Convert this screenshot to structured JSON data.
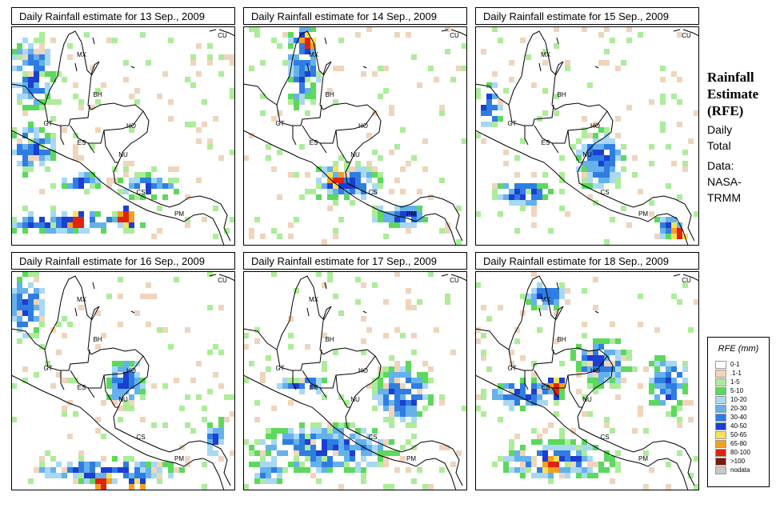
{
  "panels": [
    {
      "title": "Daily Rainfall estimate for  13 Sep., 2009",
      "rain": [
        [
          0.08,
          0.2,
          0.2,
          0.4
        ],
        [
          0.08,
          0.55,
          0.25,
          0.25
        ],
        [
          0.2,
          0.88,
          0.8,
          0.12
        ],
        [
          0.6,
          0.72,
          0.3,
          0.12
        ],
        [
          0.3,
          0.7,
          0.2,
          0.1
        ]
      ],
      "hot": [
        [
          0.28,
          0.88
        ],
        [
          0.5,
          0.86
        ]
      ]
    },
    {
      "title": "Daily Rainfall estimate for  14 Sep., 2009",
      "rain": [
        [
          0.25,
          0.15,
          0.15,
          0.5
        ],
        [
          0.45,
          0.7,
          0.35,
          0.2
        ],
        [
          0.3,
          0.2,
          0.1,
          0.12
        ],
        [
          0.7,
          0.85,
          0.3,
          0.12
        ]
      ],
      "hot": [
        [
          0.27,
          0.06
        ],
        [
          0.4,
          0.68
        ]
      ]
    },
    {
      "title": "Daily Rainfall estimate for  15 Sep., 2009",
      "rain": [
        [
          0.05,
          0.35,
          0.15,
          0.25
        ],
        [
          0.55,
          0.6,
          0.25,
          0.3
        ],
        [
          0.85,
          0.9,
          0.15,
          0.12
        ],
        [
          0.2,
          0.75,
          0.3,
          0.15
        ]
      ],
      "hot": [
        [
          0.9,
          0.92
        ]
      ]
    },
    {
      "title": "Daily Rainfall estimate for  16 Sep., 2009",
      "rain": [
        [
          0.05,
          0.15,
          0.2,
          0.35
        ],
        [
          0.4,
          0.9,
          0.75,
          0.12
        ],
        [
          0.5,
          0.5,
          0.2,
          0.25
        ],
        [
          0.9,
          0.75,
          0.1,
          0.2
        ]
      ],
      "hot": [
        [
          0.4,
          0.95
        ],
        [
          0.55,
          0.98
        ]
      ]
    },
    {
      "title": "Daily Rainfall estimate for  17 Sep., 2009",
      "rain": [
        [
          0.35,
          0.8,
          0.7,
          0.25
        ],
        [
          0.25,
          0.5,
          0.25,
          0.12
        ],
        [
          0.7,
          0.55,
          0.3,
          0.3
        ],
        [
          0.1,
          0.9,
          0.2,
          0.12
        ]
      ],
      "hot": []
    },
    {
      "title": "Daily Rainfall estimate for  18 Sep., 2009",
      "rain": [
        [
          0.2,
          0.55,
          0.4,
          0.15
        ],
        [
          0.35,
          0.85,
          0.6,
          0.2
        ],
        [
          0.55,
          0.4,
          0.3,
          0.25
        ],
        [
          0.85,
          0.5,
          0.2,
          0.3
        ],
        [
          0.3,
          0.1,
          0.2,
          0.15
        ]
      ],
      "hot": [
        [
          0.33,
          0.87
        ],
        [
          0.35,
          0.52
        ]
      ]
    }
  ],
  "map_labels": [
    "MX",
    "BH",
    "GT",
    "HO",
    "ES",
    "NU",
    "CS",
    "PM",
    "CU"
  ],
  "side": {
    "title_line1": "Rainfall",
    "title_line2": "Estimate",
    "title_line3": "(RFE)",
    "daily_line1": "Daily",
    "daily_line2": "Total",
    "data_line1": "Data:",
    "data_line2": "NASA-",
    "data_line3": "TRMM"
  },
  "legend": {
    "title": "RFE (mm)",
    "items": [
      {
        "label": "0-1",
        "color": "#ffffff"
      },
      {
        "label": ".1-1",
        "color": "#efd5bd"
      },
      {
        "label": "1-5",
        "color": "#adec9a"
      },
      {
        "label": "5-10",
        "color": "#5cd95c"
      },
      {
        "label": "10-20",
        "color": "#a9d8f5"
      },
      {
        "label": "20-30",
        "color": "#65b1ec"
      },
      {
        "label": "30-40",
        "color": "#2f7de1"
      },
      {
        "label": "40-50",
        "color": "#1b3fd0"
      },
      {
        "label": "50-65",
        "color": "#f7e15a"
      },
      {
        "label": "65-80",
        "color": "#f49f23"
      },
      {
        "label": "80-100",
        "color": "#e0240c"
      },
      {
        "label": ">100",
        "color": "#7d1a0c"
      },
      {
        "label": "nodata",
        "color": "#c8c8c8"
      }
    ]
  }
}
